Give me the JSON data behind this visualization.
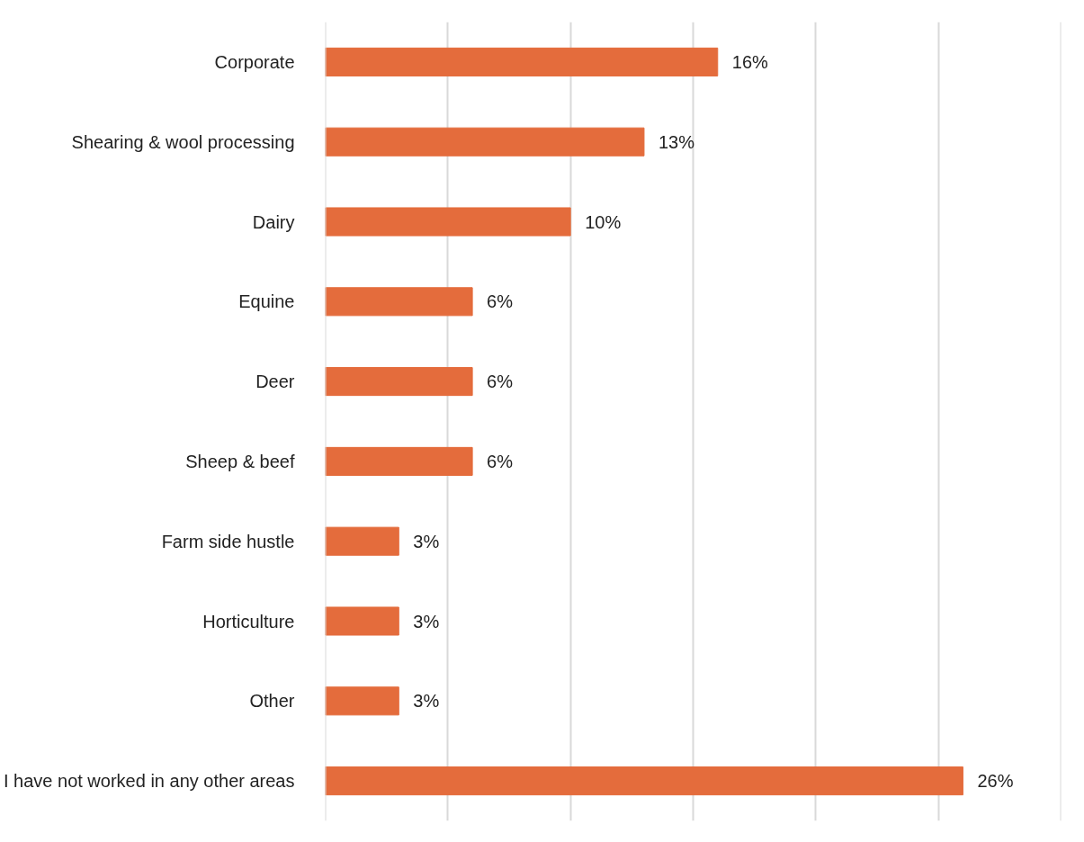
{
  "chart_data": {
    "type": "bar",
    "orientation": "horizontal",
    "categories": [
      "Corporate",
      "Shearing & wool processing",
      "Dairy",
      "Equine",
      "Deer",
      "Sheep & beef",
      "Farm side hustle",
      "Horticulture",
      "Other",
      "I have not worked in any other areas"
    ],
    "values": [
      16,
      13,
      10,
      6,
      6,
      6,
      3,
      3,
      3,
      26
    ],
    "value_labels": [
      "16%",
      "13%",
      "10%",
      "6%",
      "6%",
      "6%",
      "3%",
      "3%",
      "3%",
      "26%"
    ],
    "color": "#e46c3c",
    "xlim": [
      0,
      30
    ],
    "xticks": [
      {
        "value": 0,
        "label": null
      },
      {
        "value": 5,
        "label": null
      },
      {
        "value": 10,
        "label": null
      },
      {
        "value": 15,
        "label": null
      },
      {
        "value": 20,
        "label": null
      },
      {
        "value": 25,
        "label": null
      },
      {
        "value": 30,
        "label": null
      }
    ],
    "tick_labels": "y",
    "grid": "x"
  }
}
